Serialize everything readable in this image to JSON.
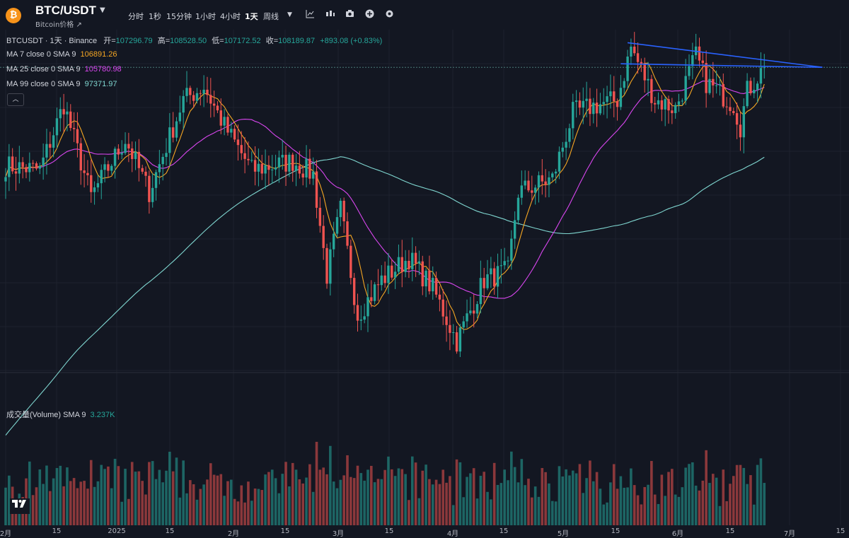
{
  "header": {
    "symbol": "BTC/USDT",
    "subtitle": "Bitcoin价格 ↗",
    "logo_glyph": "₿",
    "timeframes": [
      "分时",
      "1秒",
      "15分钟",
      "1小时",
      "4小时",
      "1天",
      "周线"
    ],
    "active_timeframe": "1天",
    "icons": [
      "chevron-down-icon",
      "indicator-icon",
      "chart-type-icon",
      "camera-icon",
      "add-icon",
      "settings-icon"
    ]
  },
  "legend": {
    "title": "BTCUSDT · 1天 · Binance",
    "open_label": "开=",
    "open": "107296.79",
    "high_label": "高=",
    "high": "108528.50",
    "low_label": "低=",
    "low": "107172.52",
    "close_label": "收=",
    "close": "108189.87",
    "change": "+893.08 (+0.83%)",
    "ma7_label": "MA 7 close 0 SMA 9",
    "ma7_value": "106891.26",
    "ma7_color": "#f5a623",
    "ma25_label": "MA 25 close 0 SMA 9",
    "ma25_value": "105780.98",
    "ma25_color": "#d946ef",
    "ma99_label": "MA 99 close 0 SMA 9",
    "ma99_value": "97371.97",
    "ma99_color": "#7fd6d0"
  },
  "volume_legend": {
    "label": "成交量(Volume) SMA 9",
    "value": "3.237K"
  },
  "xaxis_ticks": [
    "2月",
    "15",
    "2025",
    "15",
    "2月",
    "15",
    "3月",
    "15",
    "4月",
    "15",
    "5月",
    "15",
    "6月",
    "15",
    "7月",
    "15"
  ],
  "colors": {
    "up": "#26a69a",
    "down": "#ef5350",
    "trendline": "#2962ff",
    "background": "#131722"
  },
  "chart_data": {
    "type": "candlestick",
    "symbol": "BTCUSDT",
    "interval": "1天",
    "y_range": [
      74000,
      112000
    ],
    "anchor_points": [
      {
        "day": 0,
        "price": 97000
      },
      {
        "day": 10,
        "price": 96500
      },
      {
        "day": 17,
        "price": 104000
      },
      {
        "day": 25,
        "price": 93500
      },
      {
        "day": 35,
        "price": 100000
      },
      {
        "day": 42,
        "price": 94000
      },
      {
        "day": 52,
        "price": 104500
      },
      {
        "day": 58,
        "price": 106000
      },
      {
        "day": 64,
        "price": 101500
      },
      {
        "day": 72,
        "price": 96500
      },
      {
        "day": 84,
        "price": 97500
      },
      {
        "day": 90,
        "price": 96000
      },
      {
        "day": 94,
        "price": 84500
      },
      {
        "day": 98,
        "price": 92000
      },
      {
        "day": 103,
        "price": 80000
      },
      {
        "day": 110,
        "price": 84000
      },
      {
        "day": 118,
        "price": 86500
      },
      {
        "day": 125,
        "price": 83000
      },
      {
        "day": 132,
        "price": 77000
      },
      {
        "day": 140,
        "price": 84000
      },
      {
        "day": 147,
        "price": 85000
      },
      {
        "day": 150,
        "price": 94000
      },
      {
        "day": 160,
        "price": 95500
      },
      {
        "day": 166,
        "price": 103000
      },
      {
        "day": 172,
        "price": 103800
      },
      {
        "day": 179,
        "price": 104500
      },
      {
        "day": 183,
        "price": 110500
      },
      {
        "day": 190,
        "price": 104500
      },
      {
        "day": 196,
        "price": 103500
      },
      {
        "day": 202,
        "price": 109500
      },
      {
        "day": 205,
        "price": 106500
      },
      {
        "day": 213,
        "price": 104000
      },
      {
        "day": 215,
        "price": 101500
      },
      {
        "day": 217,
        "price": 105500
      },
      {
        "day": 222,
        "price": 108200
      }
    ],
    "trendline": {
      "from": {
        "day": 182,
        "price": 111000
      },
      "to": {
        "day": 239,
        "price": 108200
      }
    },
    "horizontal_level": 108200
  }
}
